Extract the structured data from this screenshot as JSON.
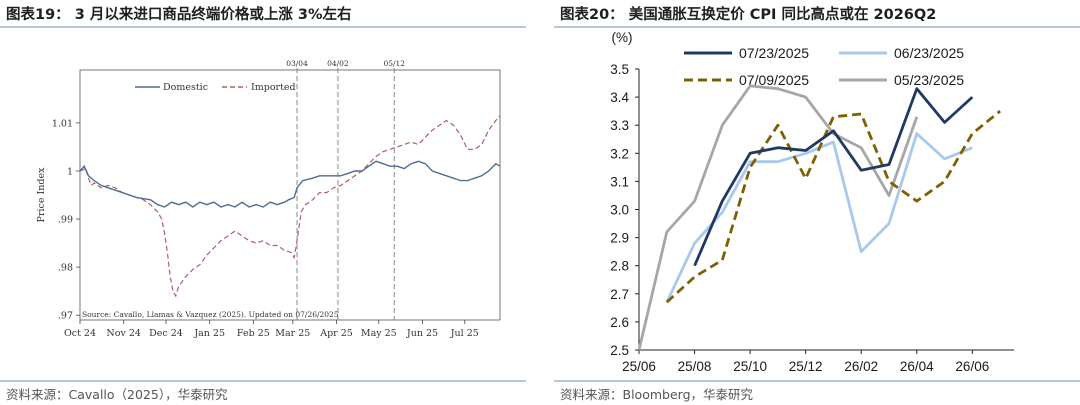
{
  "left_panel": {
    "title": "图表19： 3 月以来进口商品终端价格或上涨 3%左右",
    "source": "资料来源：Cavallo（2025），华泰研究"
  },
  "right_panel": {
    "title": "图表20： 美国通胀互换定价 CPI 同比高点或在 2026Q2",
    "source": "资料来源：Bloomberg，华泰研究"
  },
  "chart_data": [
    {
      "type": "line",
      "ylabel": "Price Index",
      "ylim": [
        0.969,
        1.021
      ],
      "yticks": [
        0.97,
        0.98,
        0.99,
        1,
        1.01
      ],
      "ytick_labels": [
        ".97",
        ".98",
        ".99",
        "1",
        "1.01"
      ],
      "categories": [
        "Oct 24",
        "Nov 24",
        "Dec 24",
        "Jan 25",
        "Feb 25",
        "Mar 25",
        "Apr 25",
        "May 25",
        "Jun 25",
        "Jul 25"
      ],
      "x_days": [
        0,
        31,
        61,
        92,
        123,
        151,
        182,
        212,
        243,
        273
      ],
      "x_end_day": 298,
      "annotation": "Source: Cavallo, Llamas & Vazquez (2025). Updated on 07/26/2025",
      "legend_position": "top",
      "colors": {
        "domestic": "#4a6f96",
        "imported": "#b06060",
        "vline": "#888888"
      },
      "vlines": [
        {
          "label": "03/04",
          "day": 154
        },
        {
          "label": "04/02",
          "day": 183
        },
        {
          "label": "05/12",
          "day": 223
        }
      ],
      "series": [
        {
          "name": "Domestic",
          "style": "solid",
          "points": [
            [
              0,
              1.0
            ],
            [
              3,
              1.001
            ],
            [
              6,
              0.999
            ],
            [
              10,
              0.998
            ],
            [
              15,
              0.997
            ],
            [
              20,
              0.9965
            ],
            [
              30,
              0.9955
            ],
            [
              40,
              0.9945
            ],
            [
              50,
              0.994
            ],
            [
              55,
              0.993
            ],
            [
              60,
              0.9925
            ],
            [
              65,
              0.9935
            ],
            [
              70,
              0.993
            ],
            [
              75,
              0.9935
            ],
            [
              80,
              0.9925
            ],
            [
              85,
              0.9935
            ],
            [
              90,
              0.993
            ],
            [
              95,
              0.9935
            ],
            [
              100,
              0.9925
            ],
            [
              105,
              0.993
            ],
            [
              110,
              0.9925
            ],
            [
              115,
              0.9935
            ],
            [
              120,
              0.9925
            ],
            [
              125,
              0.993
            ],
            [
              130,
              0.9925
            ],
            [
              135,
              0.9935
            ],
            [
              140,
              0.993
            ],
            [
              145,
              0.9935
            ],
            [
              148,
              0.994
            ],
            [
              152,
              0.9945
            ],
            [
              154,
              0.9965
            ],
            [
              158,
              0.998
            ],
            [
              165,
              0.9985
            ],
            [
              170,
              0.999
            ],
            [
              175,
              0.999
            ],
            [
              180,
              0.999
            ],
            [
              185,
              0.999
            ],
            [
              190,
              0.9995
            ],
            [
              195,
              1.0
            ],
            [
              200,
              1.0
            ],
            [
              205,
              1.001
            ],
            [
              210,
              1.002
            ],
            [
              215,
              1.0015
            ],
            [
              220,
              1.001
            ],
            [
              225,
              1.001
            ],
            [
              230,
              1.0005
            ],
            [
              235,
              1.0015
            ],
            [
              240,
              1.002
            ],
            [
              245,
              1.0015
            ],
            [
              250,
              1.0
            ],
            [
              255,
              0.9995
            ],
            [
              260,
              0.999
            ],
            [
              265,
              0.9985
            ],
            [
              270,
              0.998
            ],
            [
              275,
              0.998
            ],
            [
              280,
              0.9985
            ],
            [
              285,
              0.999
            ],
            [
              290,
              1.0
            ],
            [
              295,
              1.0015
            ],
            [
              298,
              1.001
            ]
          ]
        },
        {
          "name": "Imported",
          "style": "dashed",
          "points": [
            [
              0,
              1.0
            ],
            [
              4,
              1.0005
            ],
            [
              6,
              0.9985
            ],
            [
              8,
              0.997
            ],
            [
              10,
              0.9975
            ],
            [
              15,
              0.9965
            ],
            [
              20,
              0.997
            ],
            [
              25,
              0.9965
            ],
            [
              30,
              0.9955
            ],
            [
              35,
              0.995
            ],
            [
              40,
              0.9945
            ],
            [
              45,
              0.994
            ],
            [
              50,
              0.993
            ],
            [
              55,
              0.9915
            ],
            [
              58,
              0.99
            ],
            [
              60,
              0.987
            ],
            [
              62,
              0.983
            ],
            [
              64,
              0.978
            ],
            [
              66,
              0.975
            ],
            [
              68,
              0.974
            ],
            [
              70,
              0.976
            ],
            [
              75,
              0.978
            ],
            [
              80,
              0.9795
            ],
            [
              85,
              0.9805
            ],
            [
              90,
              0.9825
            ],
            [
              95,
              0.984
            ],
            [
              100,
              0.9855
            ],
            [
              105,
              0.9865
            ],
            [
              110,
              0.9875
            ],
            [
              115,
              0.9865
            ],
            [
              120,
              0.9855
            ],
            [
              125,
              0.985
            ],
            [
              130,
              0.9855
            ],
            [
              135,
              0.9845
            ],
            [
              140,
              0.9845
            ],
            [
              145,
              0.9835
            ],
            [
              150,
              0.983
            ],
            [
              152,
              0.982
            ],
            [
              154,
              0.9855
            ],
            [
              157,
              0.9915
            ],
            [
              160,
              0.993
            ],
            [
              165,
              0.994
            ],
            [
              170,
              0.9955
            ],
            [
              175,
              0.9955
            ],
            [
              180,
              0.9965
            ],
            [
              185,
              0.997
            ],
            [
              190,
              0.998
            ],
            [
              195,
              0.999
            ],
            [
              200,
              1.0
            ],
            [
              205,
              1.0015
            ],
            [
              210,
              1.003
            ],
            [
              215,
              1.004
            ],
            [
              220,
              1.0045
            ],
            [
              225,
              1.005
            ],
            [
              230,
              1.0055
            ],
            [
              235,
              1.006
            ],
            [
              240,
              1.0055
            ],
            [
              245,
              1.007
            ],
            [
              250,
              1.0085
            ],
            [
              255,
              1.0095
            ],
            [
              260,
              1.0105
            ],
            [
              265,
              1.0095
            ],
            [
              270,
              1.0075
            ],
            [
              275,
              1.0045
            ],
            [
              280,
              1.0045
            ],
            [
              285,
              1.0055
            ],
            [
              290,
              1.0085
            ],
            [
              295,
              1.0105
            ],
            [
              298,
              1.0115
            ]
          ]
        }
      ]
    },
    {
      "type": "line",
      "ylabel": "(%)",
      "ylim": [
        2.5,
        3.5
      ],
      "yticks": [
        2.5,
        2.6,
        2.7,
        2.8,
        2.9,
        3.0,
        3.1,
        3.2,
        3.3,
        3.4,
        3.5
      ],
      "ytick_labels": [
        "2.5",
        "2.6",
        "2.7",
        "2.8",
        "2.9",
        "3.0",
        "3.1",
        "3.2",
        "3.3",
        "3.4",
        "3.5"
      ],
      "x": [
        "25/06",
        "25/07",
        "25/08",
        "25/09",
        "25/10",
        "25/11",
        "25/12",
        "26/01",
        "26/02",
        "26/03",
        "26/04",
        "26/05",
        "26/06",
        "26/07"
      ],
      "xtick_labels": [
        "25/06",
        "25/08",
        "25/10",
        "25/12",
        "26/02",
        "26/04",
        "26/06"
      ],
      "xtick_positions": [
        0,
        2,
        4,
        6,
        8,
        10,
        12
      ],
      "x_max": 13.5,
      "legend_position": "top",
      "series": [
        {
          "name": "07/23/2025",
          "color": "#1f3864",
          "style": "solid",
          "points": [
            [
              2,
              2.8
            ],
            [
              3,
              3.03
            ],
            [
              4,
              3.2
            ],
            [
              5,
              3.22
            ],
            [
              6,
              3.21
            ],
            [
              7,
              3.28
            ],
            [
              8,
              3.14
            ],
            [
              9,
              3.16
            ],
            [
              10,
              3.43
            ],
            [
              11,
              3.31
            ],
            [
              12,
              3.4
            ]
          ]
        },
        {
          "name": "06/23/2025",
          "color": "#a9c9ec",
          "style": "solid",
          "points": [
            [
              1,
              2.67
            ],
            [
              2,
              2.88
            ],
            [
              3,
              2.99
            ],
            [
              4,
              3.17
            ],
            [
              5,
              3.17
            ],
            [
              6,
              3.2
            ],
            [
              7,
              3.24
            ],
            [
              8,
              2.85
            ],
            [
              9,
              2.95
            ],
            [
              10,
              3.27
            ],
            [
              11,
              3.18
            ],
            [
              12,
              3.22
            ]
          ]
        },
        {
          "name": "07/09/2025",
          "color": "#7f6000",
          "style": "dashed",
          "points": [
            [
              1,
              2.67
            ],
            [
              2,
              2.76
            ],
            [
              3,
              2.82
            ],
            [
              4,
              3.15
            ],
            [
              5,
              3.3
            ],
            [
              6,
              3.11
            ],
            [
              7,
              3.33
            ],
            [
              8,
              3.34
            ],
            [
              9,
              3.1
            ],
            [
              10,
              3.03
            ],
            [
              11,
              3.1
            ],
            [
              12,
              3.27
            ],
            [
              13,
              3.35
            ]
          ]
        },
        {
          "name": "05/23/2025",
          "color": "#a6a6a6",
          "style": "solid",
          "points": [
            [
              0,
              2.5
            ],
            [
              1,
              2.92
            ],
            [
              2,
              3.03
            ],
            [
              3,
              3.3
            ],
            [
              4,
              3.44
            ],
            [
              5,
              3.43
            ],
            [
              6,
              3.4
            ],
            [
              7,
              3.27
            ],
            [
              8,
              3.22
            ],
            [
              9,
              3.05
            ],
            [
              10,
              3.33
            ]
          ]
        }
      ]
    }
  ]
}
